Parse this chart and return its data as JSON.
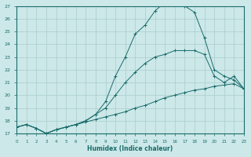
{
  "title": "",
  "xlabel": "Humidex (Indice chaleur)",
  "background_color": "#cce8e8",
  "grid_color": "#b0d0d0",
  "line_color": "#1a6b6b",
  "x_min": 0,
  "x_max": 23,
  "y_min": 17,
  "y_max": 27,
  "curve1_x": [
    0,
    1,
    2,
    3,
    4,
    5,
    6,
    7,
    8,
    9,
    10,
    11,
    12,
    13,
    14,
    15,
    16,
    17,
    18,
    19,
    20,
    21,
    22,
    23
  ],
  "curve1_y": [
    17.5,
    17.7,
    17.4,
    17.0,
    17.3,
    17.5,
    17.7,
    18.0,
    18.5,
    19.5,
    21.5,
    23.0,
    24.8,
    25.5,
    26.6,
    27.3,
    27.3,
    27.0,
    26.5,
    24.5,
    22.0,
    21.5,
    21.2,
    20.5
  ],
  "curve2_x": [
    0,
    1,
    2,
    3,
    4,
    5,
    6,
    7,
    8,
    9,
    10,
    11,
    12,
    13,
    14,
    15,
    16,
    17,
    18,
    19,
    20,
    21,
    22,
    23
  ],
  "curve2_y": [
    17.5,
    17.7,
    17.4,
    17.0,
    17.3,
    17.5,
    17.7,
    18.0,
    18.5,
    19.0,
    20.0,
    21.0,
    21.8,
    22.5,
    23.0,
    23.2,
    23.5,
    23.5,
    23.5,
    23.2,
    21.5,
    21.0,
    21.5,
    20.5
  ],
  "curve3_x": [
    0,
    1,
    2,
    3,
    4,
    5,
    6,
    7,
    8,
    9,
    10,
    11,
    12,
    13,
    14,
    15,
    16,
    17,
    18,
    19,
    20,
    21,
    22,
    23
  ],
  "curve3_y": [
    17.5,
    17.7,
    17.4,
    17.0,
    17.3,
    17.5,
    17.7,
    17.9,
    18.1,
    18.3,
    18.5,
    18.7,
    19.0,
    19.2,
    19.5,
    19.8,
    20.0,
    20.2,
    20.4,
    20.5,
    20.7,
    20.8,
    20.9,
    20.5
  ],
  "y_ticks": [
    17,
    18,
    19,
    20,
    21,
    22,
    23,
    24,
    25,
    26,
    27
  ],
  "x_ticks": [
    0,
    1,
    2,
    3,
    4,
    5,
    6,
    7,
    8,
    9,
    10,
    11,
    12,
    13,
    14,
    15,
    16,
    17,
    18,
    19,
    20,
    21,
    22,
    23
  ]
}
